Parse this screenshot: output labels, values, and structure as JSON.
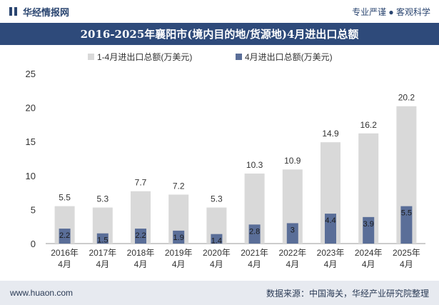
{
  "header": {
    "brand": "华经情报网",
    "slogan": "专业严谨 ● 客观科学"
  },
  "footer": {
    "website": "www.huaon.com",
    "source": "数据来源：中国海关，华经产业研究院整理"
  },
  "colors": {
    "title_bg": "#2e4a7a",
    "total_bar": "#d9d9d9",
    "april_bar": "#5a6e98",
    "footer_bg": "#e7eaf0"
  },
  "chart_data": {
    "type": "bar",
    "title": "2016-2025年襄阳市(境内目的地/货源地)4月进出口总额",
    "categories": [
      "2016年4月",
      "2017年4月",
      "2018年4月",
      "2019年4月",
      "2020年4月",
      "2021年4月",
      "2022年4月",
      "2023年4月",
      "2024年4月",
      "2025年4月"
    ],
    "series": [
      {
        "name": "1-4月进出口总额(万美元)",
        "values": [
          5.5,
          5.3,
          7.7,
          7.2,
          5.3,
          10.3,
          10.9,
          14.9,
          16.2,
          20.2
        ]
      },
      {
        "name": "4月进出口总额(万美元)",
        "values": [
          2.2,
          1.5,
          2.2,
          1.9,
          1.4,
          2.8,
          3,
          4.4,
          3.9,
          5.5
        ]
      }
    ],
    "ylim": [
      0,
      25
    ],
    "yticks": [
      0,
      5,
      10,
      15,
      20,
      25
    ],
    "legend_position": "top",
    "grid": false
  }
}
